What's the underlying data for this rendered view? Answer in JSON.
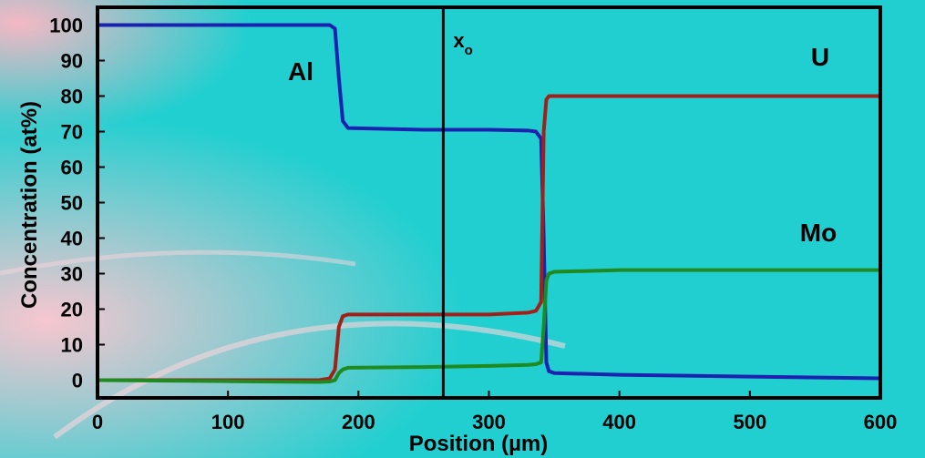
{
  "chart_data": {
    "type": "line",
    "xlabel": "Position (µm)",
    "ylabel": "Concentration (at%)",
    "x": [
      0,
      100,
      170,
      178,
      182,
      185,
      188,
      192,
      250,
      300,
      330,
      336,
      340,
      342,
      344,
      346,
      350,
      400,
      500,
      600
    ],
    "series": [
      {
        "name": "Al",
        "color": "#1c22b0",
        "values": [
          100,
          100,
          100,
          100,
          99,
          85,
          73,
          71,
          70.5,
          70.5,
          70.3,
          70,
          68,
          40,
          5,
          2.5,
          2,
          1.5,
          1,
          0.5
        ]
      },
      {
        "name": "U",
        "color": "#a3201a",
        "values": [
          0,
          0,
          0,
          0.5,
          3,
          15,
          18,
          18.5,
          18.5,
          18.5,
          19,
          19.5,
          22,
          70,
          79,
          80,
          80,
          80,
          80,
          80
        ]
      },
      {
        "name": "Mo",
        "color": "#1f8a1f",
        "values": [
          0,
          -0.3,
          -0.5,
          -0.4,
          0,
          2,
          3,
          3.5,
          3.7,
          4,
          4.3,
          4.5,
          5,
          15,
          28,
          30,
          30.5,
          31,
          31,
          31
        ]
      }
    ],
    "vline_x": 265,
    "vline_label": "x",
    "vline_label_sub": "o",
    "xlim": [
      0,
      600
    ],
    "xticks": [
      0,
      100,
      200,
      300,
      400,
      500,
      600
    ],
    "ylim": [
      -5,
      105
    ],
    "yticks": [
      0,
      10,
      20,
      30,
      40,
      50,
      60,
      70,
      80,
      90,
      100
    ],
    "grid": false
  }
}
